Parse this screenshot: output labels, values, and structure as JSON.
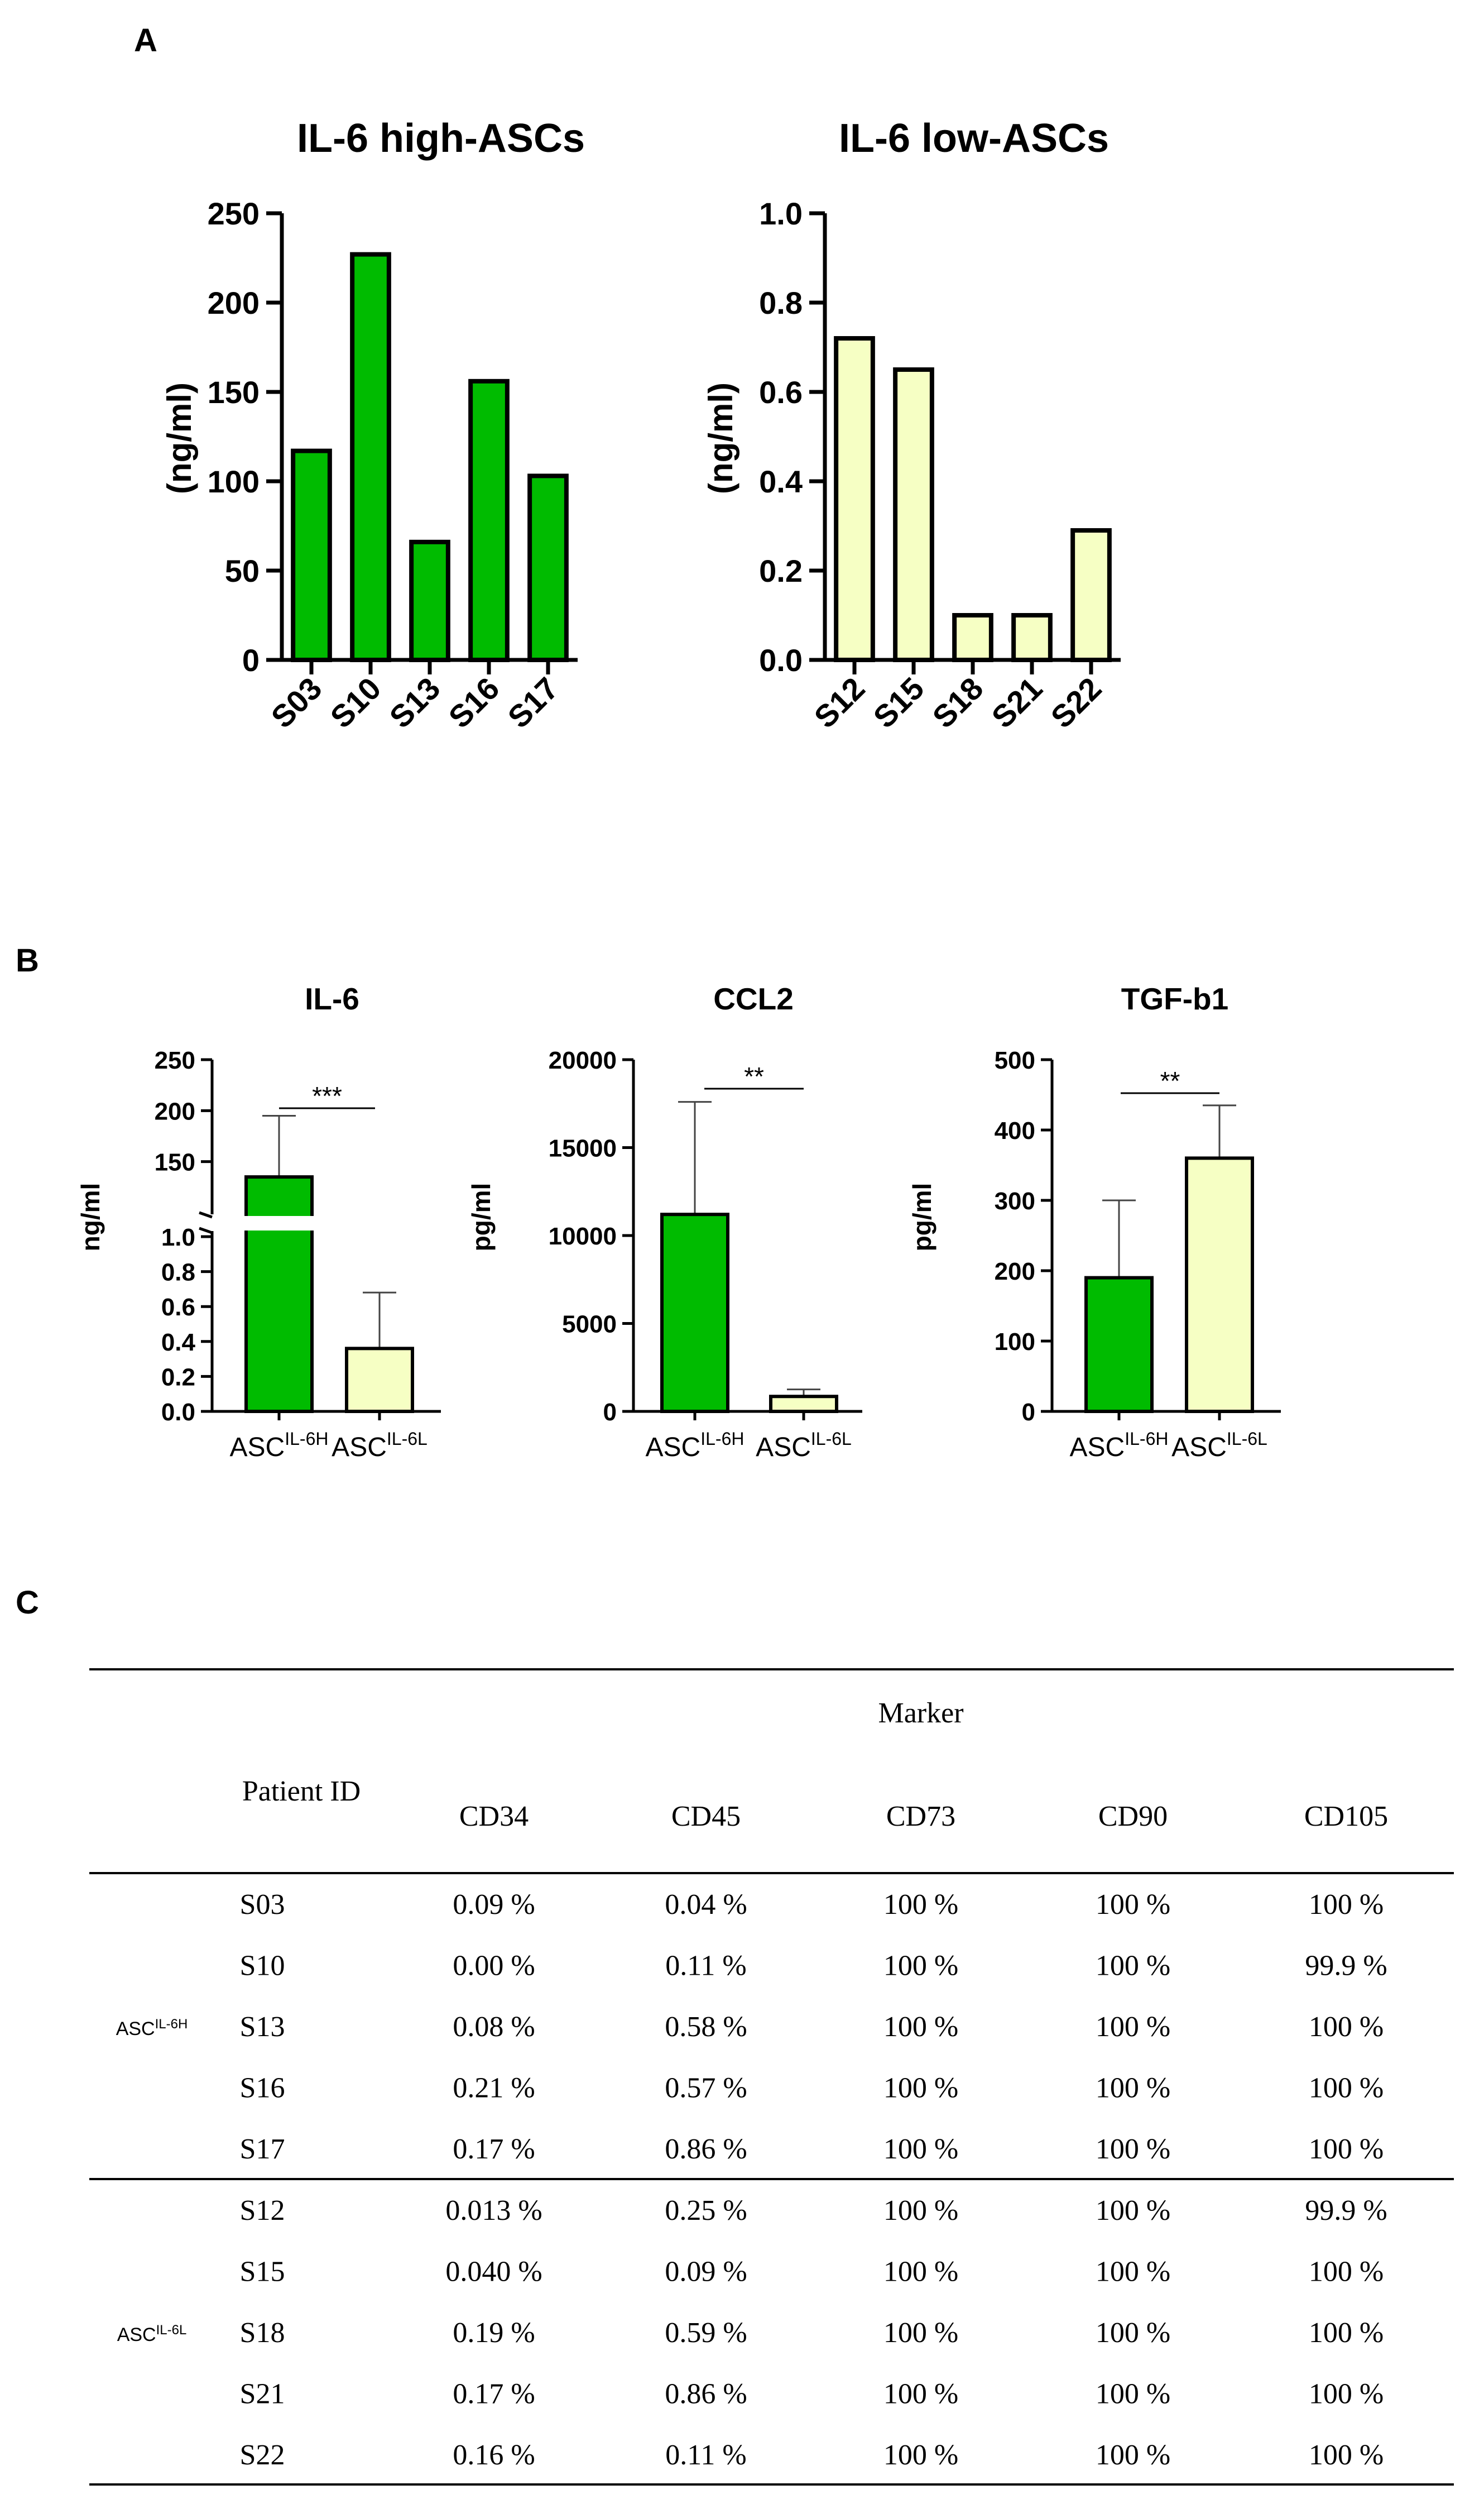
{
  "panel_labels": {
    "a": "A",
    "b": "B",
    "c": "C"
  },
  "colors": {
    "high": "#00bb00",
    "low": "#f6ffc4",
    "stroke": "#000000"
  },
  "chart_data": [
    {
      "type": "bar",
      "title": "IL-6 high-ASCs",
      "ylabel": "(ng/ml)",
      "categories": [
        "S03",
        "S10",
        "S13",
        "S16",
        "S17"
      ],
      "values": [
        117,
        227,
        66,
        156,
        103
      ],
      "ylim": [
        0,
        250
      ],
      "yticks": [
        "0",
        "50",
        "100",
        "150",
        "200",
        "250"
      ],
      "color": "#00bb00"
    },
    {
      "type": "bar",
      "title": "IL-6 low-ASCs",
      "ylabel": "(ng/ml)",
      "categories": [
        "S12",
        "S15",
        "S18",
        "S21",
        "S22"
      ],
      "values": [
        0.72,
        0.65,
        0.1,
        0.1,
        0.29
      ],
      "ylim": [
        0,
        1.0
      ],
      "yticks": [
        "0.0",
        "0.2",
        "0.4",
        "0.6",
        "0.8",
        "1.0"
      ],
      "color": "#f6ffc4"
    },
    {
      "type": "bar",
      "title": "IL-6",
      "ylabel": "ng/ml",
      "categories": [
        "ASC",
        "ASC"
      ],
      "category_sups": [
        "IL-6H",
        "IL-6L"
      ],
      "values": [
        135,
        0.36
      ],
      "errors": [
        60,
        0.32
      ],
      "ylim_upper": [
        100,
        250
      ],
      "ylim_lower": [
        0,
        1.0
      ],
      "yticks_upper": [
        "150",
        "200",
        "250"
      ],
      "yticks_lower": [
        "0.0",
        "0.2",
        "0.4",
        "0.6",
        "0.8",
        "1.0"
      ],
      "significance": "***"
    },
    {
      "type": "bar",
      "title": "CCL2",
      "ylabel": "pg/ml",
      "categories": [
        "ASC",
        "ASC"
      ],
      "category_sups": [
        "IL-6H",
        "IL-6L"
      ],
      "values": [
        11200,
        850
      ],
      "errors": [
        6400,
        400
      ],
      "ylim": [
        0,
        20000
      ],
      "yticks": [
        "0",
        "5000",
        "10000",
        "15000",
        "20000"
      ],
      "significance": "**"
    },
    {
      "type": "bar",
      "title": "TGF-b1",
      "ylabel": "pg/ml",
      "categories": [
        "ASC",
        "ASC"
      ],
      "category_sups": [
        "IL-6H",
        "IL-6L"
      ],
      "values": [
        190,
        360
      ],
      "errors": [
        110,
        75
      ],
      "ylim": [
        0,
        500
      ],
      "yticks": [
        "0",
        "100",
        "200",
        "300",
        "400",
        "500"
      ],
      "significance": "**"
    },
    {
      "type": "table",
      "header_group": "Marker",
      "header_patient": "Patient ID",
      "columns": [
        "CD34",
        "CD45",
        "CD73",
        "CD90",
        "CD105"
      ],
      "groups": [
        {
          "label": "ASC",
          "sup": "IL-6H",
          "rows": [
            {
              "id": "S03",
              "values": [
                "0.09 %",
                "0.04 %",
                "100 %",
                "100 %",
                "100 %"
              ]
            },
            {
              "id": "S10",
              "values": [
                "0.00 %",
                "0.11 %",
                "100 %",
                "100 %",
                "99.9 %"
              ]
            },
            {
              "id": "S13",
              "values": [
                "0.08 %",
                "0.58 %",
                "100 %",
                "100 %",
                "100 %"
              ]
            },
            {
              "id": "S16",
              "values": [
                "0.21 %",
                "0.57 %",
                "100 %",
                "100 %",
                "100 %"
              ]
            },
            {
              "id": "S17",
              "values": [
                "0.17 %",
                "0.86 %",
                "100 %",
                "100 %",
                "100 %"
              ]
            }
          ]
        },
        {
          "label": "ASC",
          "sup": "IL-6L",
          "rows": [
            {
              "id": "S12",
              "values": [
                "0.013 %",
                "0.25 %",
                "100 %",
                "100 %",
                "99.9 %"
              ]
            },
            {
              "id": "S15",
              "values": [
                "0.040 %",
                "0.09 %",
                "100 %",
                "100 %",
                "100 %"
              ]
            },
            {
              "id": "S18",
              "values": [
                "0.19 %",
                "0.59 %",
                "100 %",
                "100 %",
                "100 %"
              ]
            },
            {
              "id": "S21",
              "values": [
                "0.17 %",
                "0.86 %",
                "100 %",
                "100 %",
                "100 %"
              ]
            },
            {
              "id": "S22",
              "values": [
                "0.16 %",
                "0.11 %",
                "100 %",
                "100 %",
                "100 %"
              ]
            }
          ]
        }
      ]
    }
  ]
}
